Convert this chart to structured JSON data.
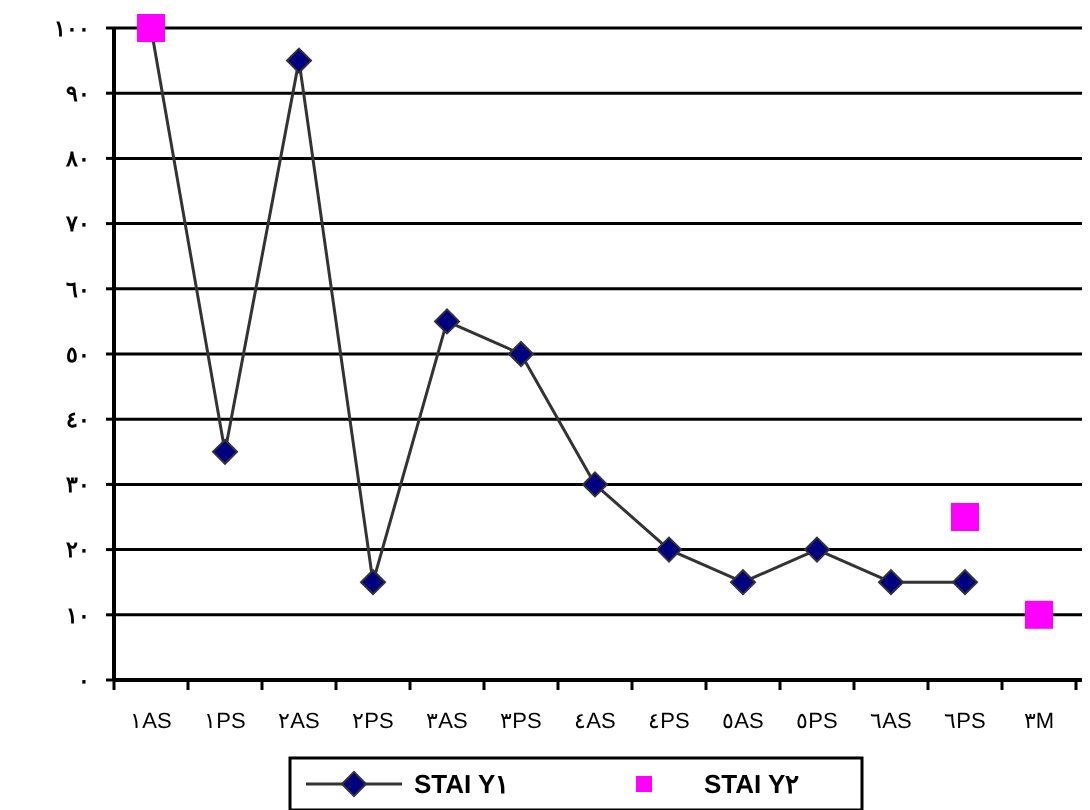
{
  "chart_data": {
    "type": "line",
    "categories": [
      "١AS",
      "١PS",
      "٢AS",
      "٢PS",
      "٣AS",
      "٣PS",
      "٤AS",
      "٤PS",
      "٥AS",
      "٥PS",
      "٦AS",
      "٦PS",
      "٣M"
    ],
    "series": [
      {
        "name": "STAI Y١",
        "color": "#000080",
        "values": [
          100,
          35,
          95,
          15,
          55,
          50,
          30,
          20,
          15,
          20,
          15,
          15,
          null
        ],
        "marker": "diamond"
      },
      {
        "name": "STAI Y٢",
        "type": "scatter",
        "color": "#ff00ff",
        "values": [
          100,
          null,
          null,
          null,
          null,
          null,
          null,
          null,
          null,
          null,
          null,
          25,
          10
        ],
        "marker": "square"
      }
    ],
    "ylim": [
      0,
      100
    ],
    "yticks": [
      {
        "value": 0,
        "label": "٠"
      },
      {
        "value": 10,
        "label": "١٠"
      },
      {
        "value": 20,
        "label": "٢٠"
      },
      {
        "value": 30,
        "label": "٣٠"
      },
      {
        "value": 40,
        "label": "٤٠"
      },
      {
        "value": 50,
        "label": "٥٠"
      },
      {
        "value": 60,
        "label": "٦٠"
      },
      {
        "value": 70,
        "label": "٧٠"
      },
      {
        "value": 80,
        "label": "٨٠"
      },
      {
        "value": 90,
        "label": "٩٠"
      },
      {
        "value": 100,
        "label": "١٠٠"
      }
    ],
    "grid": "y",
    "legend": "bottom"
  }
}
